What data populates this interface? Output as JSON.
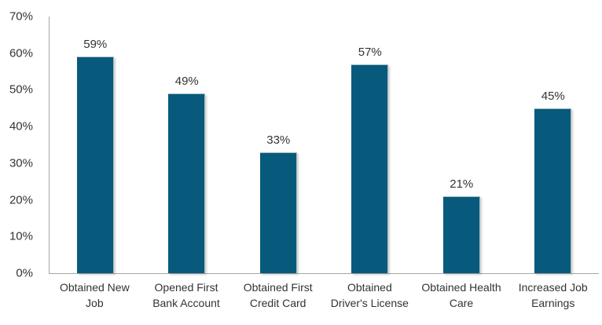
{
  "chart_data": {
    "type": "bar",
    "title": "",
    "xlabel": "",
    "ylabel": "",
    "categories": [
      "Obtained New Job",
      "Opened First Bank Account",
      "Obtained First Credit Card",
      "Obtained Driver's License",
      "Obtained Health Care",
      "Increased Job Earnings"
    ],
    "categories_display": [
      "Obtained New\nJob",
      "Opened First\nBank Account",
      "Obtained First\nCredit Card",
      "Obtained\nDriver's License",
      "Obtained Health\nCare",
      "Increased Job\nEarnings"
    ],
    "values": [
      59,
      49,
      33,
      57,
      21,
      45
    ],
    "data_labels": [
      "59%",
      "49%",
      "33%",
      "57%",
      "21%",
      "45%"
    ],
    "ylim": [
      0,
      70
    ],
    "y_ticks": [
      "0%",
      "10%",
      "20%",
      "30%",
      "40%",
      "50%",
      "60%",
      "70%"
    ],
    "grid": false,
    "legend": "none",
    "colors": {
      "bar": "#075A7C",
      "axis": "#A6A6A6",
      "text": "#333333"
    }
  }
}
